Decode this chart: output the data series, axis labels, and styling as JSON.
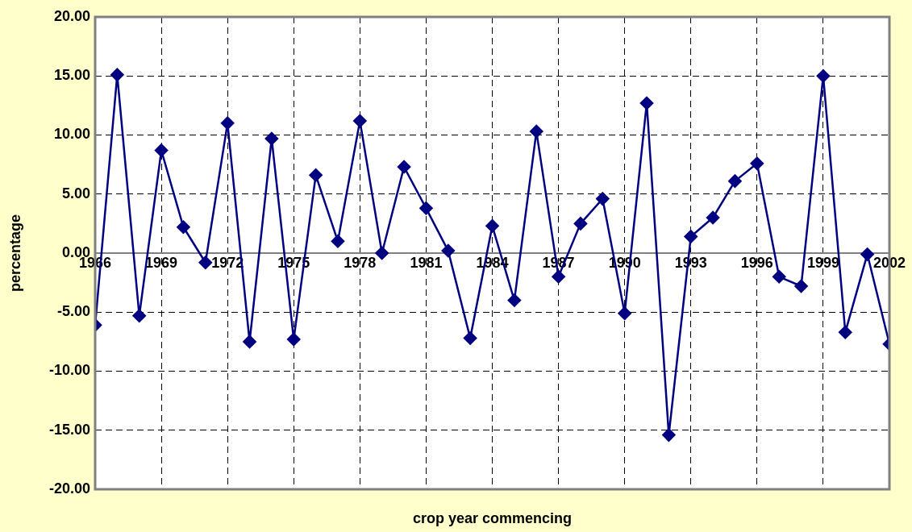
{
  "chart_data": {
    "type": "line",
    "xlabel": "crop year commencing",
    "ylabel": "percentage",
    "x": [
      1966,
      1967,
      1968,
      1969,
      1970,
      1971,
      1972,
      1973,
      1974,
      1975,
      1976,
      1977,
      1978,
      1979,
      1980,
      1981,
      1982,
      1983,
      1984,
      1985,
      1986,
      1987,
      1988,
      1989,
      1990,
      1991,
      1992,
      1993,
      1994,
      1995,
      1996,
      1997,
      1998,
      1999,
      2000,
      2001,
      2002
    ],
    "series": [
      {
        "color": "#000080",
        "values": [
          -6.1,
          15.1,
          -5.3,
          8.7,
          2.2,
          -0.8,
          11.0,
          -7.5,
          9.7,
          -7.3,
          6.6,
          1.0,
          11.2,
          0.0,
          7.3,
          3.8,
          0.2,
          -7.2,
          2.3,
          -4.0,
          10.3,
          -2.0,
          2.5,
          4.6,
          -5.1,
          12.7,
          -15.4,
          1.4,
          3.0,
          6.1,
          7.6,
          -2.0,
          -2.8,
          15.0,
          -6.7,
          -0.1,
          -7.7
        ]
      }
    ],
    "xlim": [
      1966,
      2002
    ],
    "xticks": [
      1966,
      1969,
      1972,
      1975,
      1978,
      1981,
      1984,
      1987,
      1990,
      1993,
      1996,
      1999,
      2002
    ],
    "ylim": [
      -20,
      20
    ],
    "yticks": [
      {
        "value": -20,
        "label": "-20.00"
      },
      {
        "value": -15,
        "label": "-15.00"
      },
      {
        "value": -10,
        "label": "-10.00"
      },
      {
        "value": -5,
        "label": "-5.00"
      },
      {
        "value": 0,
        "label": "0.00"
      },
      {
        "value": 5,
        "label": "5.00"
      },
      {
        "value": 10,
        "label": "10.00"
      },
      {
        "value": 15,
        "label": "15.00"
      },
      {
        "value": 20,
        "label": "20.00"
      }
    ],
    "grid": true,
    "marker": "diamond",
    "line_style": "solid",
    "legend": false
  }
}
